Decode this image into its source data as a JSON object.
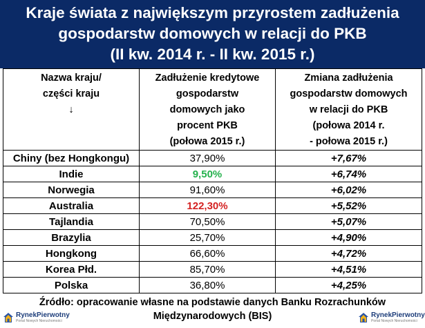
{
  "title": {
    "line1": "Kraje świata z największym przyrostem zadłużenia",
    "line2": "gospodarstw domowych w relacji do PKB",
    "line3": "(II kw. 2014 r. - II kw. 2015 r.)"
  },
  "headers": {
    "col1": [
      "Nazwa kraju/",
      "części kraju",
      "↓"
    ],
    "col2": [
      "Zadłużenie kredytowe",
      "gospodarstw",
      "domowych jako",
      "procent PKB",
      "(połowa 2015 r.)"
    ],
    "col3": [
      "Zmiana zadłużenia",
      "gospodarstw domowych",
      "w relacji do PKB",
      "(połowa 2014 r.",
      "- połowa 2015 r.)"
    ]
  },
  "rows": [
    {
      "country": "Chiny (bez Hongkongu)",
      "debt": "37,90%",
      "change": "+7,67%"
    },
    {
      "country": "Indie",
      "debt": "9,50%",
      "change": "+6,74%"
    },
    {
      "country": "Norwegia",
      "debt": "91,60%",
      "change": "+6,02%"
    },
    {
      "country": "Australia",
      "debt": "122,30%",
      "change": "+5,52%"
    },
    {
      "country": "Tajlandia",
      "debt": "70,50%",
      "change": "+5,07%"
    },
    {
      "country": "Brazylia",
      "debt": "25,70%",
      "change": "+4,90%"
    },
    {
      "country": "Hongkong",
      "debt": "66,60%",
      "change": "+4,72%"
    },
    {
      "country": "Korea Płd.",
      "debt": "85,70%",
      "change": "+4,51%"
    },
    {
      "country": "Polska",
      "debt": "36,80%",
      "change": "+4,25%"
    }
  ],
  "source": {
    "line1": "Źródło: opracowanie własne na podstawie danych Banku Rozrachunków",
    "line2": "Międzynarodowych (BIS)"
  },
  "logo": {
    "name": "RynekPierwotny",
    "tagline": "Portal Nowych Nieruchomości"
  },
  "colors": {
    "title_bg": "#0b2a66",
    "lowest_value": "#24b14c",
    "highest_value": "#d42222"
  }
}
